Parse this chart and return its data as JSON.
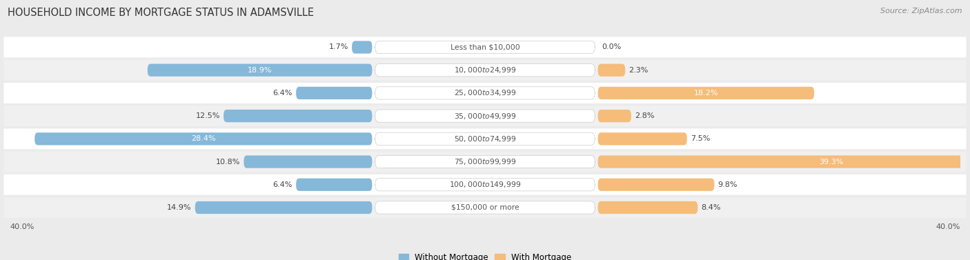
{
  "title": "HOUSEHOLD INCOME BY MORTGAGE STATUS IN ADAMSVILLE",
  "source": "Source: ZipAtlas.com",
  "categories": [
    "Less than $10,000",
    "$10,000 to $24,999",
    "$25,000 to $34,999",
    "$35,000 to $49,999",
    "$50,000 to $74,999",
    "$75,000 to $99,999",
    "$100,000 to $149,999",
    "$150,000 or more"
  ],
  "without_mortgage": [
    1.7,
    18.9,
    6.4,
    12.5,
    28.4,
    10.8,
    6.4,
    14.9
  ],
  "with_mortgage": [
    0.0,
    2.3,
    18.2,
    2.8,
    7.5,
    39.3,
    9.8,
    8.4
  ],
  "max_value": 40.0,
  "color_without": "#85B8D9",
  "color_with": "#F5BC7A",
  "bg_color": "#EBEBEB",
  "row_bg_light": "#F5F5F5",
  "row_bg_dark": "#E5E5E5",
  "legend_labels": [
    "Without Mortgage",
    "With Mortgage"
  ],
  "axis_label_left": "40.0%",
  "axis_label_right": "40.0%",
  "title_fontsize": 10.5,
  "source_fontsize": 8,
  "bar_label_fontsize": 8,
  "category_fontsize": 7.8,
  "label_inside_threshold": 15
}
